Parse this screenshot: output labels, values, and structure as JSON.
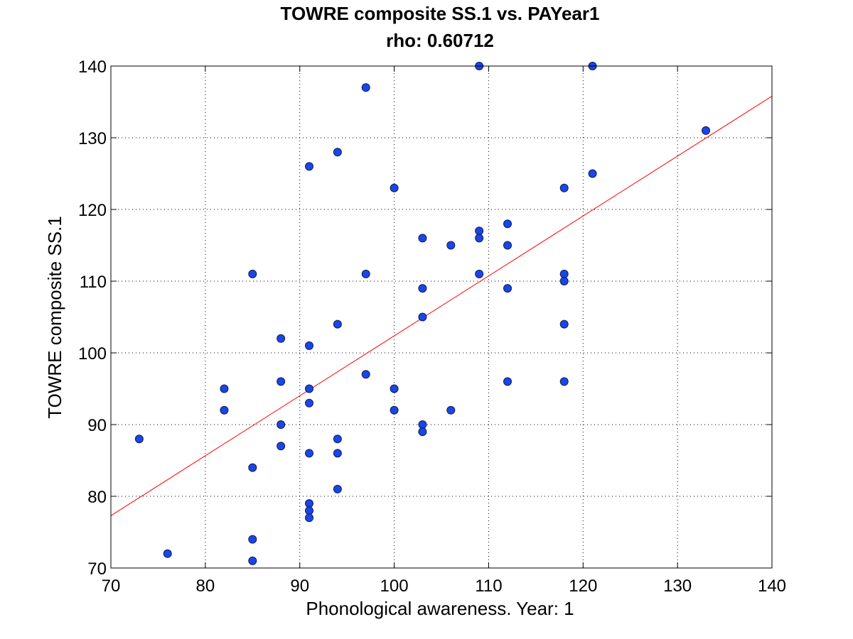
{
  "chart_data": {
    "type": "scatter",
    "title": "TOWRE composite SS.1 vs. PAYear1",
    "subtitle": "rho: 0.60712",
    "xlabel": "Phonological awareness. Year: 1",
    "ylabel": "TOWRE composite SS.1",
    "xlim": [
      70,
      140
    ],
    "ylim": [
      70,
      140
    ],
    "xticks": [
      70,
      80,
      90,
      100,
      110,
      120,
      130,
      140
    ],
    "yticks": [
      70,
      80,
      90,
      100,
      110,
      120,
      130,
      140
    ],
    "xtick_labels": [
      "70",
      "80",
      "90",
      "100",
      "110",
      "120",
      "130",
      "140"
    ],
    "ytick_labels": [
      "70",
      "80",
      "90",
      "100",
      "110",
      "120",
      "130",
      "140"
    ],
    "grid": true,
    "points": [
      [
        73,
        88
      ],
      [
        76,
        72
      ],
      [
        82,
        95
      ],
      [
        82,
        92
      ],
      [
        85,
        111
      ],
      [
        85,
        84
      ],
      [
        85,
        74
      ],
      [
        85,
        71
      ],
      [
        88,
        102
      ],
      [
        88,
        96
      ],
      [
        88,
        90
      ],
      [
        88,
        87
      ],
      [
        91,
        126
      ],
      [
        91,
        101
      ],
      [
        91,
        95
      ],
      [
        91,
        93
      ],
      [
        91,
        86
      ],
      [
        91,
        79
      ],
      [
        91,
        78
      ],
      [
        91,
        77
      ],
      [
        94,
        128
      ],
      [
        94,
        104
      ],
      [
        94,
        88
      ],
      [
        94,
        86
      ],
      [
        94,
        81
      ],
      [
        97,
        137
      ],
      [
        97,
        111
      ],
      [
        97,
        97
      ],
      [
        100,
        123
      ],
      [
        100,
        95
      ],
      [
        100,
        92
      ],
      [
        103,
        116
      ],
      [
        103,
        109
      ],
      [
        103,
        105
      ],
      [
        103,
        90
      ],
      [
        103,
        89
      ],
      [
        106,
        115
      ],
      [
        106,
        92
      ],
      [
        109,
        140
      ],
      [
        109,
        117
      ],
      [
        109,
        116
      ],
      [
        109,
        111
      ],
      [
        112,
        118
      ],
      [
        112,
        115
      ],
      [
        112,
        109
      ],
      [
        112,
        96
      ],
      [
        118,
        123
      ],
      [
        118,
        111
      ],
      [
        118,
        110
      ],
      [
        118,
        104
      ],
      [
        118,
        96
      ],
      [
        121,
        140
      ],
      [
        121,
        125
      ],
      [
        133,
        131
      ]
    ],
    "fit_line": {
      "x": [
        70,
        140
      ],
      "y": [
        77.3,
        135.8
      ]
    },
    "colors": {
      "marker_fill": "#1c45e8",
      "marker_edge": "#0a1f55",
      "fit_line": "#ff0000",
      "grid": "#000000"
    }
  }
}
